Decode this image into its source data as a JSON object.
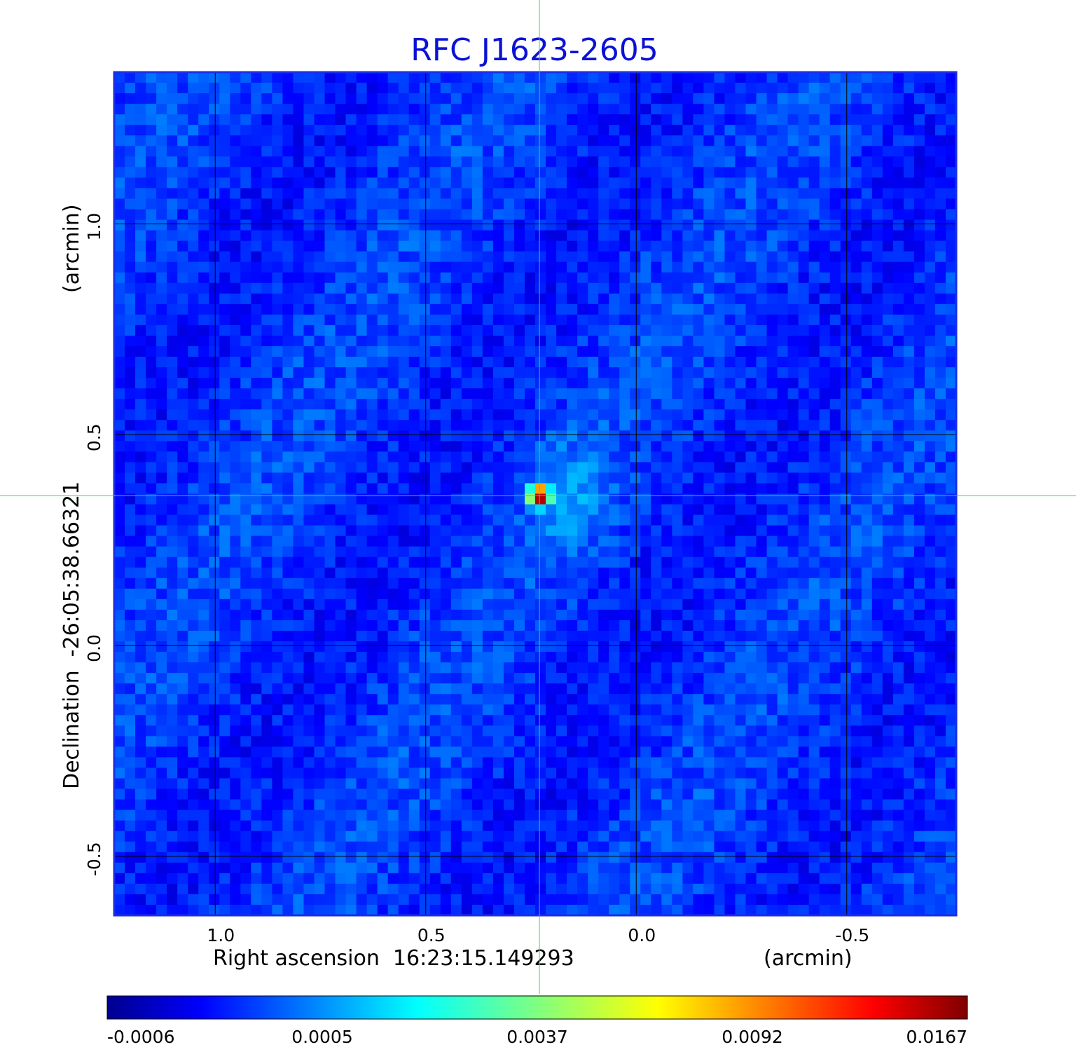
{
  "chart_data": {
    "type": "heatmap",
    "title": "RFC J1623-2605",
    "xlabel": "Right ascension  16:23:15.149293",
    "xunit": "(arcmin)",
    "ylabel": "Declination  -26:05:38.66321",
    "yunit": "(arcmin)",
    "x_ticks": [
      "1.0",
      "0.5",
      "0.0",
      "-0.5"
    ],
    "y_ticks": [
      "1.0",
      "0.5",
      "0.0",
      "-0.5"
    ],
    "x_tick_values": [
      1.0,
      0.5,
      0.0,
      -0.5
    ],
    "y_tick_values": [
      1.0,
      0.5,
      0.0,
      -0.5
    ],
    "xlim": [
      1.24,
      -0.76
    ],
    "ylim": [
      -0.64,
      1.36
    ],
    "grid": true,
    "colormap": "jet",
    "colorbar_ticks": [
      "-0.0006",
      "0.0005",
      "0.0037",
      "0.0092",
      "0.0167"
    ],
    "colorbar_range": [
      -0.0006,
      0.0167
    ],
    "source": {
      "x": 0.23,
      "y": 0.355,
      "peak": 0.0167
    },
    "crosshair": {
      "x": 0.23,
      "y": 0.355,
      "color": "#33dd33"
    },
    "frame_color": "#1a2ee8"
  }
}
